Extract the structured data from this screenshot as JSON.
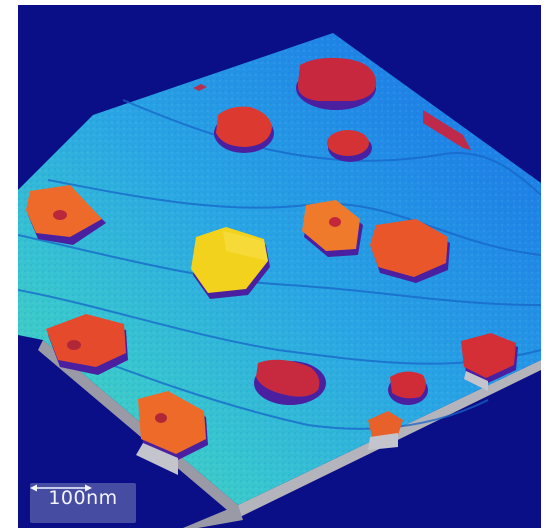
{
  "image": {
    "subject": "afm-3d-surface",
    "background_color": "#0b0f87",
    "surface_palette": [
      "#1e74e6",
      "#2898e6",
      "#33c2d2",
      "#3fd8b0",
      "#8ae0a0"
    ],
    "island_palette": [
      "#c0283c",
      "#e54a2c",
      "#f07a2a",
      "#f4d020"
    ]
  },
  "scale_bar": {
    "label": "100nm",
    "arrow_icon": "double-arrow-icon"
  }
}
